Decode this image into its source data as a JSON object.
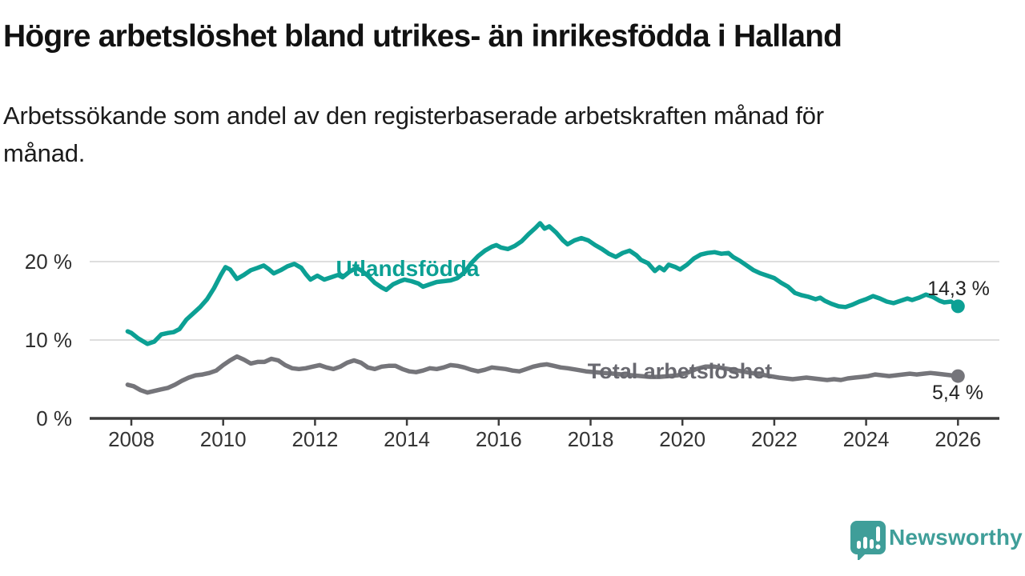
{
  "title": "Högre arbetslöshet bland utrikes- än inrikesfödda i Halland",
  "subtitle_lines": [
    "Arbetssökande som andel av den registerbaserade arbetskraften månad för",
    "månad."
  ],
  "colors": {
    "teal": "#0CA094",
    "gray": "#75757A",
    "gray_label": "#696970",
    "grid": "#DEDEDE",
    "axis": "#3D3D3D",
    "logo_teal": "#3F9E99"
  },
  "branding": {
    "logo_text": "Newsworthy",
    "logo_icon": "newsworthy-speech-bubble-bar-chart-icon"
  },
  "chart_data": {
    "type": "line",
    "title": "Högre arbetslöshet bland utrikes- än inrikesfödda i Halland",
    "subtitle": "Arbetssökande som andel av den registerbaserade arbetskraften månad för månad.",
    "unit": "%",
    "grid": true,
    "x_axis": {
      "ticks": [
        2008,
        2010,
        2012,
        2014,
        2016,
        2018,
        2020,
        2022,
        2024,
        2026
      ],
      "range": [
        2007.1,
        2026.9
      ]
    },
    "y_axis": {
      "range": [
        0,
        27.5
      ],
      "ticks": [
        {
          "value": 20,
          "label": "20 %"
        },
        {
          "value": 10,
          "label": "10 %"
        },
        {
          "value": 0,
          "label": "0 %"
        }
      ]
    },
    "series": [
      {
        "id": "utlandsfodda",
        "name": "Utlandsfödda",
        "color": "#0CA094",
        "end_value": 14.3,
        "end_label": "14,3 %",
        "points": [
          [
            2007.92,
            11.1
          ],
          [
            2008.0,
            10.9
          ],
          [
            2008.15,
            10.2
          ],
          [
            2008.35,
            9.5
          ],
          [
            2008.5,
            9.8
          ],
          [
            2008.65,
            10.7
          ],
          [
            2008.8,
            10.9
          ],
          [
            2008.92,
            11.0
          ],
          [
            2009.05,
            11.4
          ],
          [
            2009.2,
            12.6
          ],
          [
            2009.33,
            13.3
          ],
          [
            2009.5,
            14.2
          ],
          [
            2009.65,
            15.2
          ],
          [
            2009.8,
            16.6
          ],
          [
            2009.95,
            18.3
          ],
          [
            2010.05,
            19.3
          ],
          [
            2010.15,
            19.0
          ],
          [
            2010.3,
            17.8
          ],
          [
            2010.45,
            18.3
          ],
          [
            2010.6,
            18.9
          ],
          [
            2010.75,
            19.2
          ],
          [
            2010.88,
            19.5
          ],
          [
            2011.0,
            19.0
          ],
          [
            2011.1,
            18.5
          ],
          [
            2011.25,
            18.9
          ],
          [
            2011.4,
            19.4
          ],
          [
            2011.55,
            19.7
          ],
          [
            2011.7,
            19.2
          ],
          [
            2011.8,
            18.4
          ],
          [
            2011.9,
            17.7
          ],
          [
            2012.05,
            18.2
          ],
          [
            2012.2,
            17.7
          ],
          [
            2012.35,
            18.0
          ],
          [
            2012.5,
            18.3
          ],
          [
            2012.6,
            18.0
          ],
          [
            2012.75,
            18.7
          ],
          [
            2012.9,
            19.2
          ],
          [
            2013.0,
            18.9
          ],
          [
            2013.15,
            18.2
          ],
          [
            2013.3,
            17.3
          ],
          [
            2013.45,
            16.7
          ],
          [
            2013.55,
            16.4
          ],
          [
            2013.7,
            17.1
          ],
          [
            2013.85,
            17.5
          ],
          [
            2013.95,
            17.7
          ],
          [
            2014.1,
            17.5
          ],
          [
            2014.25,
            17.2
          ],
          [
            2014.35,
            16.8
          ],
          [
            2014.5,
            17.1
          ],
          [
            2014.65,
            17.4
          ],
          [
            2014.8,
            17.5
          ],
          [
            2014.95,
            17.6
          ],
          [
            2015.1,
            17.9
          ],
          [
            2015.25,
            18.6
          ],
          [
            2015.4,
            19.8
          ],
          [
            2015.55,
            20.7
          ],
          [
            2015.7,
            21.4
          ],
          [
            2015.85,
            21.9
          ],
          [
            2015.95,
            22.1
          ],
          [
            2016.05,
            21.8
          ],
          [
            2016.2,
            21.6
          ],
          [
            2016.35,
            22.0
          ],
          [
            2016.5,
            22.6
          ],
          [
            2016.65,
            23.5
          ],
          [
            2016.8,
            24.3
          ],
          [
            2016.9,
            24.9
          ],
          [
            2017.0,
            24.2
          ],
          [
            2017.1,
            24.5
          ],
          [
            2017.25,
            23.7
          ],
          [
            2017.4,
            22.7
          ],
          [
            2017.5,
            22.2
          ],
          [
            2017.65,
            22.7
          ],
          [
            2017.8,
            23.0
          ],
          [
            2017.95,
            22.7
          ],
          [
            2018.1,
            22.1
          ],
          [
            2018.25,
            21.6
          ],
          [
            2018.4,
            21.0
          ],
          [
            2018.55,
            20.6
          ],
          [
            2018.7,
            21.1
          ],
          [
            2018.85,
            21.4
          ],
          [
            2019.0,
            20.8
          ],
          [
            2019.1,
            20.2
          ],
          [
            2019.25,
            19.8
          ],
          [
            2019.4,
            18.8
          ],
          [
            2019.5,
            19.3
          ],
          [
            2019.6,
            18.9
          ],
          [
            2019.7,
            19.6
          ],
          [
            2019.85,
            19.3
          ],
          [
            2019.95,
            19.0
          ],
          [
            2020.1,
            19.6
          ],
          [
            2020.25,
            20.4
          ],
          [
            2020.4,
            20.9
          ],
          [
            2020.55,
            21.1
          ],
          [
            2020.7,
            21.2
          ],
          [
            2020.85,
            21.0
          ],
          [
            2021.0,
            21.1
          ],
          [
            2021.1,
            20.6
          ],
          [
            2021.25,
            20.1
          ],
          [
            2021.4,
            19.5
          ],
          [
            2021.55,
            18.9
          ],
          [
            2021.7,
            18.5
          ],
          [
            2021.85,
            18.2
          ],
          [
            2022.0,
            17.9
          ],
          [
            2022.15,
            17.3
          ],
          [
            2022.3,
            16.8
          ],
          [
            2022.45,
            16.0
          ],
          [
            2022.6,
            15.7
          ],
          [
            2022.75,
            15.5
          ],
          [
            2022.9,
            15.2
          ],
          [
            2023.0,
            15.4
          ],
          [
            2023.1,
            15.0
          ],
          [
            2023.25,
            14.6
          ],
          [
            2023.4,
            14.3
          ],
          [
            2023.55,
            14.2
          ],
          [
            2023.7,
            14.5
          ],
          [
            2023.85,
            14.9
          ],
          [
            2024.0,
            15.2
          ],
          [
            2024.15,
            15.6
          ],
          [
            2024.3,
            15.3
          ],
          [
            2024.45,
            14.9
          ],
          [
            2024.6,
            14.7
          ],
          [
            2024.75,
            15.0
          ],
          [
            2024.9,
            15.3
          ],
          [
            2025.0,
            15.1
          ],
          [
            2025.15,
            15.4
          ],
          [
            2025.3,
            15.8
          ],
          [
            2025.45,
            15.5
          ],
          [
            2025.6,
            15.0
          ],
          [
            2025.7,
            14.8
          ],
          [
            2025.85,
            14.9
          ],
          [
            2025.95,
            14.5
          ],
          [
            2026.0,
            14.3
          ]
        ]
      },
      {
        "id": "total",
        "name": "Total arbetslöshet",
        "color": "#75757A",
        "end_value": 5.4,
        "end_label": "5,4 %",
        "points": [
          [
            2007.92,
            4.3
          ],
          [
            2008.05,
            4.1
          ],
          [
            2008.2,
            3.6
          ],
          [
            2008.35,
            3.3
          ],
          [
            2008.5,
            3.5
          ],
          [
            2008.65,
            3.7
          ],
          [
            2008.8,
            3.9
          ],
          [
            2008.95,
            4.3
          ],
          [
            2009.1,
            4.8
          ],
          [
            2009.25,
            5.2
          ],
          [
            2009.4,
            5.5
          ],
          [
            2009.55,
            5.6
          ],
          [
            2009.7,
            5.8
          ],
          [
            2009.85,
            6.1
          ],
          [
            2010.0,
            6.8
          ],
          [
            2010.15,
            7.4
          ],
          [
            2010.3,
            7.9
          ],
          [
            2010.45,
            7.5
          ],
          [
            2010.6,
            7.0
          ],
          [
            2010.75,
            7.2
          ],
          [
            2010.9,
            7.2
          ],
          [
            2011.05,
            7.6
          ],
          [
            2011.2,
            7.4
          ],
          [
            2011.35,
            6.8
          ],
          [
            2011.5,
            6.4
          ],
          [
            2011.65,
            6.3
          ],
          [
            2011.8,
            6.4
          ],
          [
            2011.95,
            6.6
          ],
          [
            2012.1,
            6.8
          ],
          [
            2012.25,
            6.5
          ],
          [
            2012.4,
            6.3
          ],
          [
            2012.55,
            6.6
          ],
          [
            2012.7,
            7.1
          ],
          [
            2012.85,
            7.4
          ],
          [
            2013.0,
            7.1
          ],
          [
            2013.15,
            6.5
          ],
          [
            2013.3,
            6.3
          ],
          [
            2013.45,
            6.6
          ],
          [
            2013.6,
            6.7
          ],
          [
            2013.75,
            6.7
          ],
          [
            2013.9,
            6.3
          ],
          [
            2014.05,
            6.0
          ],
          [
            2014.2,
            5.9
          ],
          [
            2014.35,
            6.1
          ],
          [
            2014.5,
            6.4
          ],
          [
            2014.65,
            6.3
          ],
          [
            2014.8,
            6.5
          ],
          [
            2014.95,
            6.8
          ],
          [
            2015.1,
            6.7
          ],
          [
            2015.25,
            6.5
          ],
          [
            2015.4,
            6.2
          ],
          [
            2015.55,
            6.0
          ],
          [
            2015.7,
            6.2
          ],
          [
            2015.85,
            6.5
          ],
          [
            2016.0,
            6.4
          ],
          [
            2016.15,
            6.3
          ],
          [
            2016.3,
            6.1
          ],
          [
            2016.45,
            6.0
          ],
          [
            2016.6,
            6.3
          ],
          [
            2016.75,
            6.6
          ],
          [
            2016.9,
            6.8
          ],
          [
            2017.05,
            6.9
          ],
          [
            2017.2,
            6.7
          ],
          [
            2017.35,
            6.5
          ],
          [
            2017.5,
            6.4
          ],
          [
            2017.7,
            6.2
          ],
          [
            2017.9,
            6.0
          ],
          [
            2018.1,
            5.9
          ],
          [
            2018.3,
            5.8
          ],
          [
            2018.5,
            5.7
          ],
          [
            2018.7,
            5.6
          ],
          [
            2018.9,
            5.5
          ],
          [
            2019.1,
            5.4
          ],
          [
            2019.3,
            5.3
          ],
          [
            2019.5,
            5.3
          ],
          [
            2019.7,
            5.4
          ],
          [
            2019.9,
            5.5
          ],
          [
            2020.1,
            5.8
          ],
          [
            2020.3,
            6.3
          ],
          [
            2020.5,
            6.6
          ],
          [
            2020.7,
            6.6
          ],
          [
            2020.9,
            6.4
          ],
          [
            2021.1,
            6.2
          ],
          [
            2021.3,
            6.0
          ],
          [
            2021.5,
            5.8
          ],
          [
            2021.7,
            5.6
          ],
          [
            2021.9,
            5.4
          ],
          [
            2022.1,
            5.2
          ],
          [
            2022.25,
            5.1
          ],
          [
            2022.4,
            5.0
          ],
          [
            2022.55,
            5.1
          ],
          [
            2022.7,
            5.2
          ],
          [
            2022.85,
            5.1
          ],
          [
            2023.0,
            5.0
          ],
          [
            2023.15,
            4.9
          ],
          [
            2023.3,
            5.0
          ],
          [
            2023.45,
            4.9
          ],
          [
            2023.6,
            5.1
          ],
          [
            2023.75,
            5.2
          ],
          [
            2023.9,
            5.3
          ],
          [
            2024.05,
            5.4
          ],
          [
            2024.2,
            5.6
          ],
          [
            2024.35,
            5.5
          ],
          [
            2024.5,
            5.4
          ],
          [
            2024.65,
            5.5
          ],
          [
            2024.8,
            5.6
          ],
          [
            2024.95,
            5.7
          ],
          [
            2025.1,
            5.6
          ],
          [
            2025.25,
            5.7
          ],
          [
            2025.4,
            5.8
          ],
          [
            2025.55,
            5.7
          ],
          [
            2025.7,
            5.6
          ],
          [
            2025.85,
            5.5
          ],
          [
            2026.0,
            5.4
          ]
        ]
      }
    ]
  }
}
